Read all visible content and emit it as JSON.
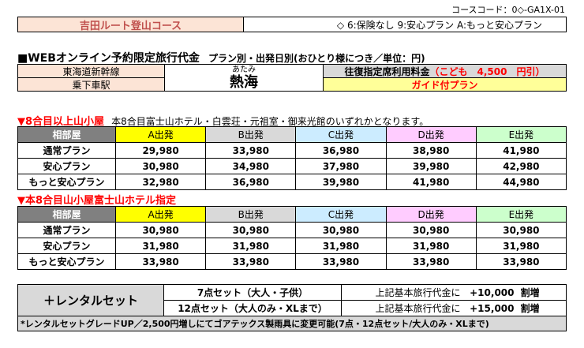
{
  "course_code": "コースコード：0◇-GA1X-01",
  "header": {
    "title": "吉田ルート登山コース",
    "options": "◇ 6:保険なし 9:安心プラン A:もっと安心プラン"
  },
  "price_heading": {
    "main": "■WEBオンライン予約限定旅行代金",
    "sub": "プラン別・出発日別(おひとり様につき／単位：円)"
  },
  "station": {
    "line": "東海道新幹線",
    "label": "乗下車駅",
    "ruby": "あたみ",
    "name": "熱海",
    "round_trip": "往復指定席利用料金",
    "child_fee": "（こども　4,500　円引）",
    "guide": "ガイド付プラン"
  },
  "section1": {
    "title": "▼8合目以上山小屋",
    "note": "本8合目富士山ホテル・白雲荘・元祖室・御来光館のいずれかとなります。"
  },
  "section2": {
    "title": "▼本8合目山小屋富士山ホテル指定"
  },
  "table_headers": {
    "room": "相部屋",
    "cols": [
      "A出発",
      "B出発",
      "C出発",
      "D出発",
      "E出発"
    ]
  },
  "colors": {
    "header_bg": "#fce4d6",
    "header_text": "#c0504d",
    "section_title": "#ff0000",
    "col_A": "#ffff00",
    "col_B": "#d9d9d9",
    "col_C": "#ccecff",
    "col_D": "#ffccff",
    "col_E": "#ccffcc",
    "guide_bg": "#ffff99",
    "round_trip_bg": "#d9d9d9"
  },
  "table1": [
    {
      "plan": "通常プラン",
      "values": [
        "29,980",
        "33,980",
        "36,980",
        "38,980",
        "41,980"
      ]
    },
    {
      "plan": "安心プラン",
      "values": [
        "30,980",
        "34,980",
        "37,980",
        "39,980",
        "42,980"
      ]
    },
    {
      "plan": "もっと安心プラン",
      "values": [
        "32,980",
        "36,980",
        "39,980",
        "41,980",
        "44,980"
      ]
    }
  ],
  "table2": [
    {
      "plan": "通常プラン",
      "values": [
        "30,980",
        "30,980",
        "30,980",
        "30,980",
        "30,980"
      ]
    },
    {
      "plan": "安心プラン",
      "values": [
        "31,980",
        "31,980",
        "31,980",
        "31,980",
        "31,980"
      ]
    },
    {
      "plan": "もっと安心プラン",
      "values": [
        "33,980",
        "33,980",
        "33,980",
        "33,980",
        "33,980"
      ]
    }
  ],
  "rental": {
    "label": "＋レンタルセット",
    "rows": [
      {
        "set": "7点セット（大人・子供）",
        "desc": "上記基本旅行代金に",
        "amount": "+10,000",
        "unit": "割増"
      },
      {
        "set": "12点セット（大人のみ・XLまで）",
        "desc": "上記基本旅行代金に",
        "amount": "+15,000",
        "unit": "割増"
      }
    ],
    "footnote": "*レンタルセットグレードUP／2,500円増しにてゴアテックス製雨具に変更可能(7点・12点セット/大人のみ・XLまで)"
  }
}
